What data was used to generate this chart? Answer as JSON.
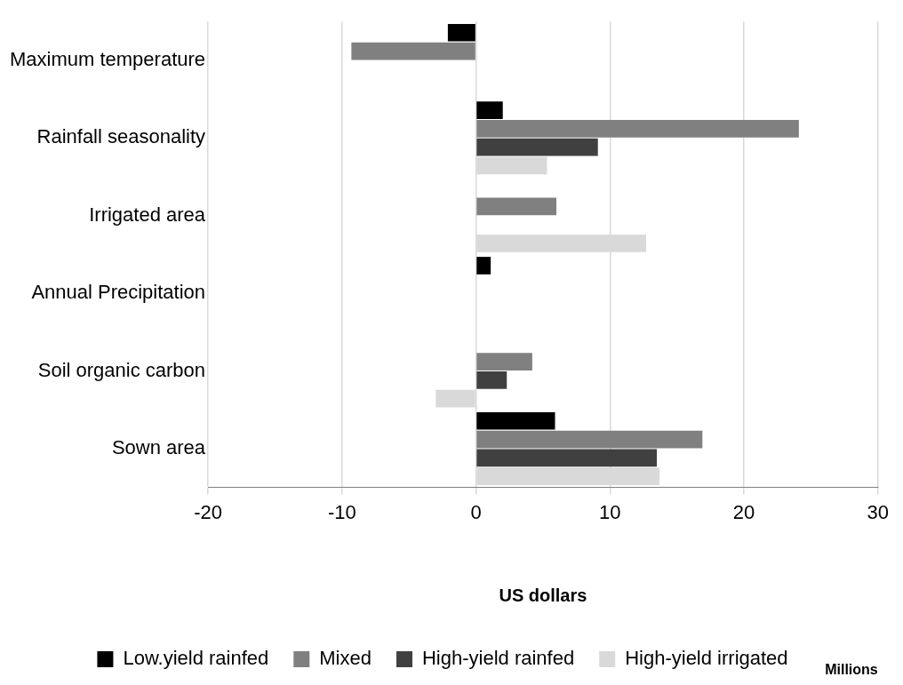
{
  "chart_data": {
    "type": "bar",
    "orientation": "horizontal",
    "xlabel": "US dollars",
    "annotations": [
      "Millions"
    ],
    "categories": [
      "Maximum temperature",
      "Rainfall seasonality",
      "Irrigated area",
      "Annual Precipitation",
      "Soil organic carbon",
      "Sown area"
    ],
    "series": [
      {
        "name": "Low.yield rainfed",
        "color": "#000000",
        "values": [
          -2.1,
          2.0,
          null,
          1.1,
          null,
          5.9
        ]
      },
      {
        "name": "Mixed",
        "color": "#808080",
        "values": [
          -9.3,
          24.1,
          6.0,
          null,
          4.2,
          16.9
        ]
      },
      {
        "name": "High-yield rainfed",
        "color": "#404040",
        "values": [
          null,
          9.1,
          null,
          null,
          2.3,
          13.5
        ]
      },
      {
        "name": "High-yield irrigated",
        "color": "#d9d9d9",
        "values": [
          null,
          5.3,
          12.7,
          null,
          -3.0,
          13.7
        ]
      }
    ],
    "xlim": [
      -20,
      30
    ],
    "xticks": [
      -20,
      -10,
      0,
      10,
      20,
      30
    ],
    "grid": "x",
    "legend": "bottom"
  }
}
